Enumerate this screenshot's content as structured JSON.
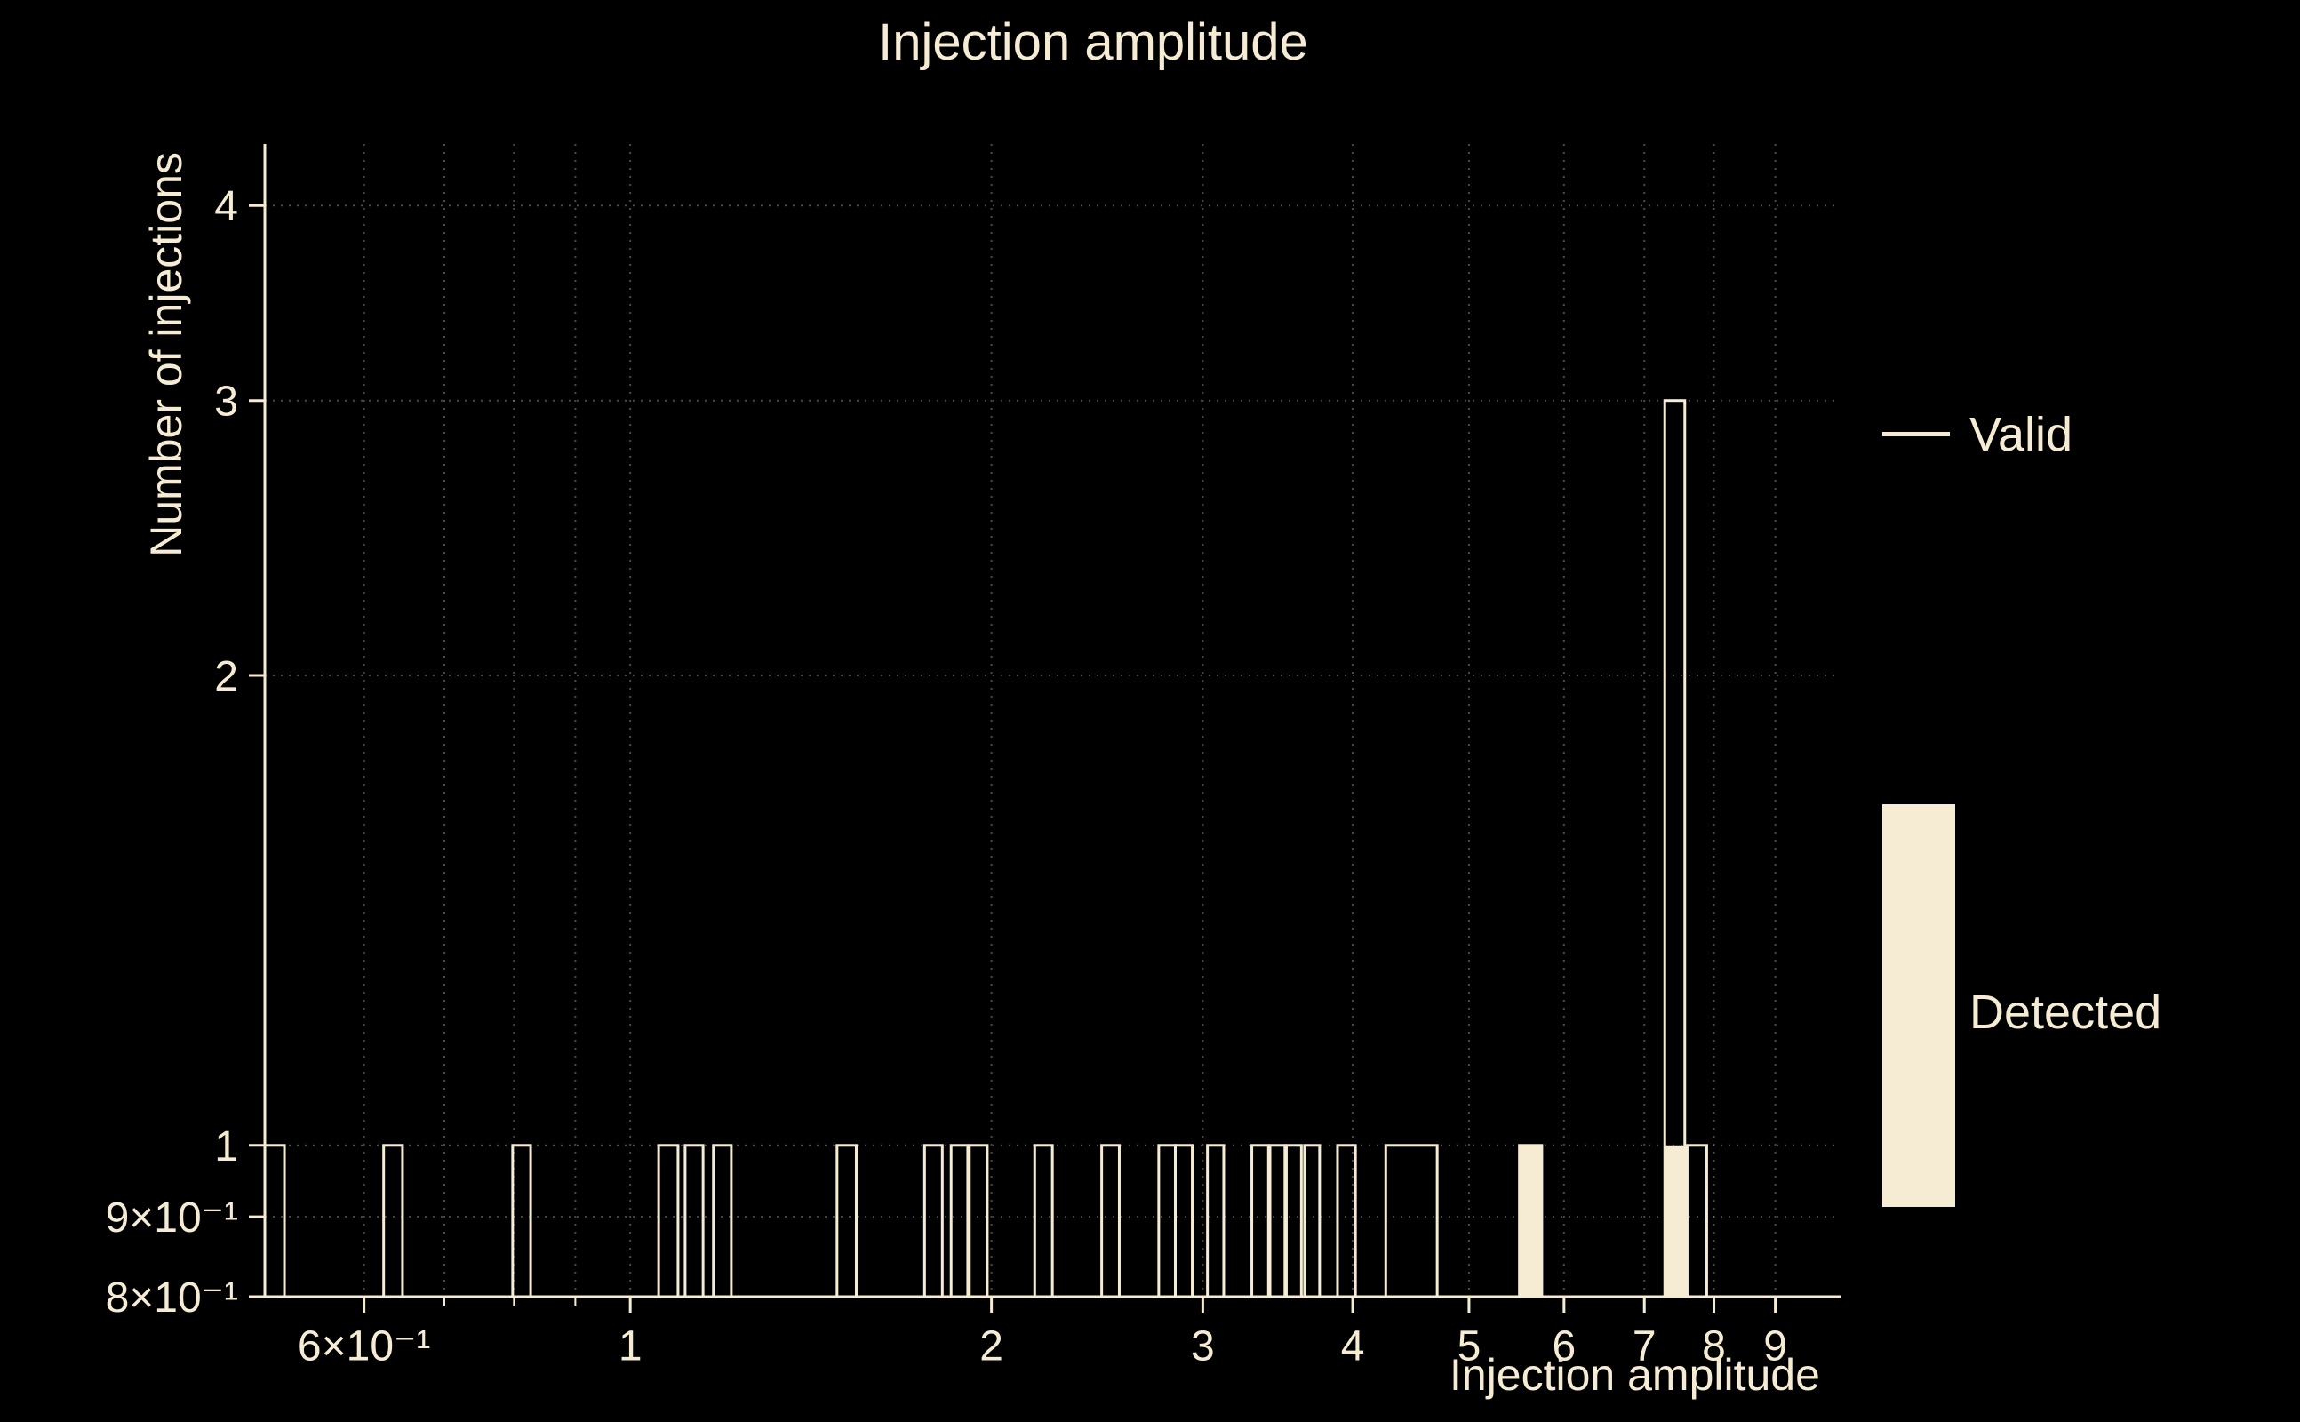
{
  "colors": {
    "background": "#000000",
    "foreground": "#f6ecd4",
    "grid": "#a8a294"
  },
  "chart_data": {
    "type": "bar",
    "subtype": "log-log step histogram",
    "title": "Injection amplitude",
    "xlabel": "Injection amplitude",
    "ylabel": "Number of injections",
    "xscale": "log",
    "yscale": "log",
    "xlim": [
      0.496,
      10.2
    ],
    "ylim": [
      0.8,
      4.38
    ],
    "grid": true,
    "legend_position": "right",
    "xticks": {
      "values": [
        0.6,
        1,
        2,
        3,
        4,
        5,
        6,
        7,
        8,
        9
      ],
      "labels": [
        "6×10⁻¹",
        "1",
        "2",
        "3",
        "4",
        "5",
        "6",
        "7",
        "8",
        "9"
      ]
    },
    "yticks": {
      "values": [
        0.8,
        0.9,
        1,
        2,
        3,
        4
      ],
      "labels": [
        "8×10⁻¹",
        "9×10⁻¹",
        "1",
        "2",
        "3",
        "4"
      ]
    },
    "xgrid": [
      0.6,
      0.7,
      0.8,
      0.9,
      1,
      2,
      3,
      4,
      5,
      6,
      7,
      8,
      9
    ],
    "ygrid": [
      0.9,
      1,
      2,
      3,
      4
    ],
    "legend": [
      {
        "label": "Valid",
        "swatch": "line"
      },
      {
        "label": "Detected",
        "swatch": "filled-rect"
      }
    ],
    "series": [
      {
        "name": "Valid",
        "style": "outline",
        "bars": [
          [
            0.496,
            0.515,
            1
          ],
          [
            0.623,
            0.646,
            1
          ],
          [
            0.798,
            0.826,
            1
          ],
          [
            1.056,
            1.096,
            1
          ],
          [
            1.111,
            1.15,
            1
          ],
          [
            1.173,
            1.214,
            1
          ],
          [
            1.487,
            1.543,
            1
          ],
          [
            1.759,
            1.82,
            1
          ],
          [
            1.851,
            1.911,
            1
          ],
          [
            1.917,
            1.984,
            1
          ],
          [
            2.173,
            2.248,
            1
          ],
          [
            2.471,
            2.556,
            1
          ],
          [
            2.757,
            2.846,
            1
          ],
          [
            2.846,
            2.94,
            1
          ],
          [
            3.027,
            3.123,
            1
          ],
          [
            3.296,
            3.403,
            1
          ],
          [
            3.413,
            3.512,
            1
          ],
          [
            3.522,
            3.625,
            1
          ],
          [
            3.647,
            3.754,
            1
          ],
          [
            3.885,
            4.021,
            1
          ],
          [
            4.262,
            4.704,
            1
          ],
          [
            5.508,
            5.75,
            1
          ],
          [
            7.28,
            7.565,
            3
          ],
          [
            7.6,
            7.89,
            1
          ]
        ]
      },
      {
        "name": "Detected",
        "style": "fill",
        "bars": [
          [
            5.508,
            5.75,
            1
          ],
          [
            7.28,
            7.565,
            1
          ]
        ]
      }
    ]
  }
}
